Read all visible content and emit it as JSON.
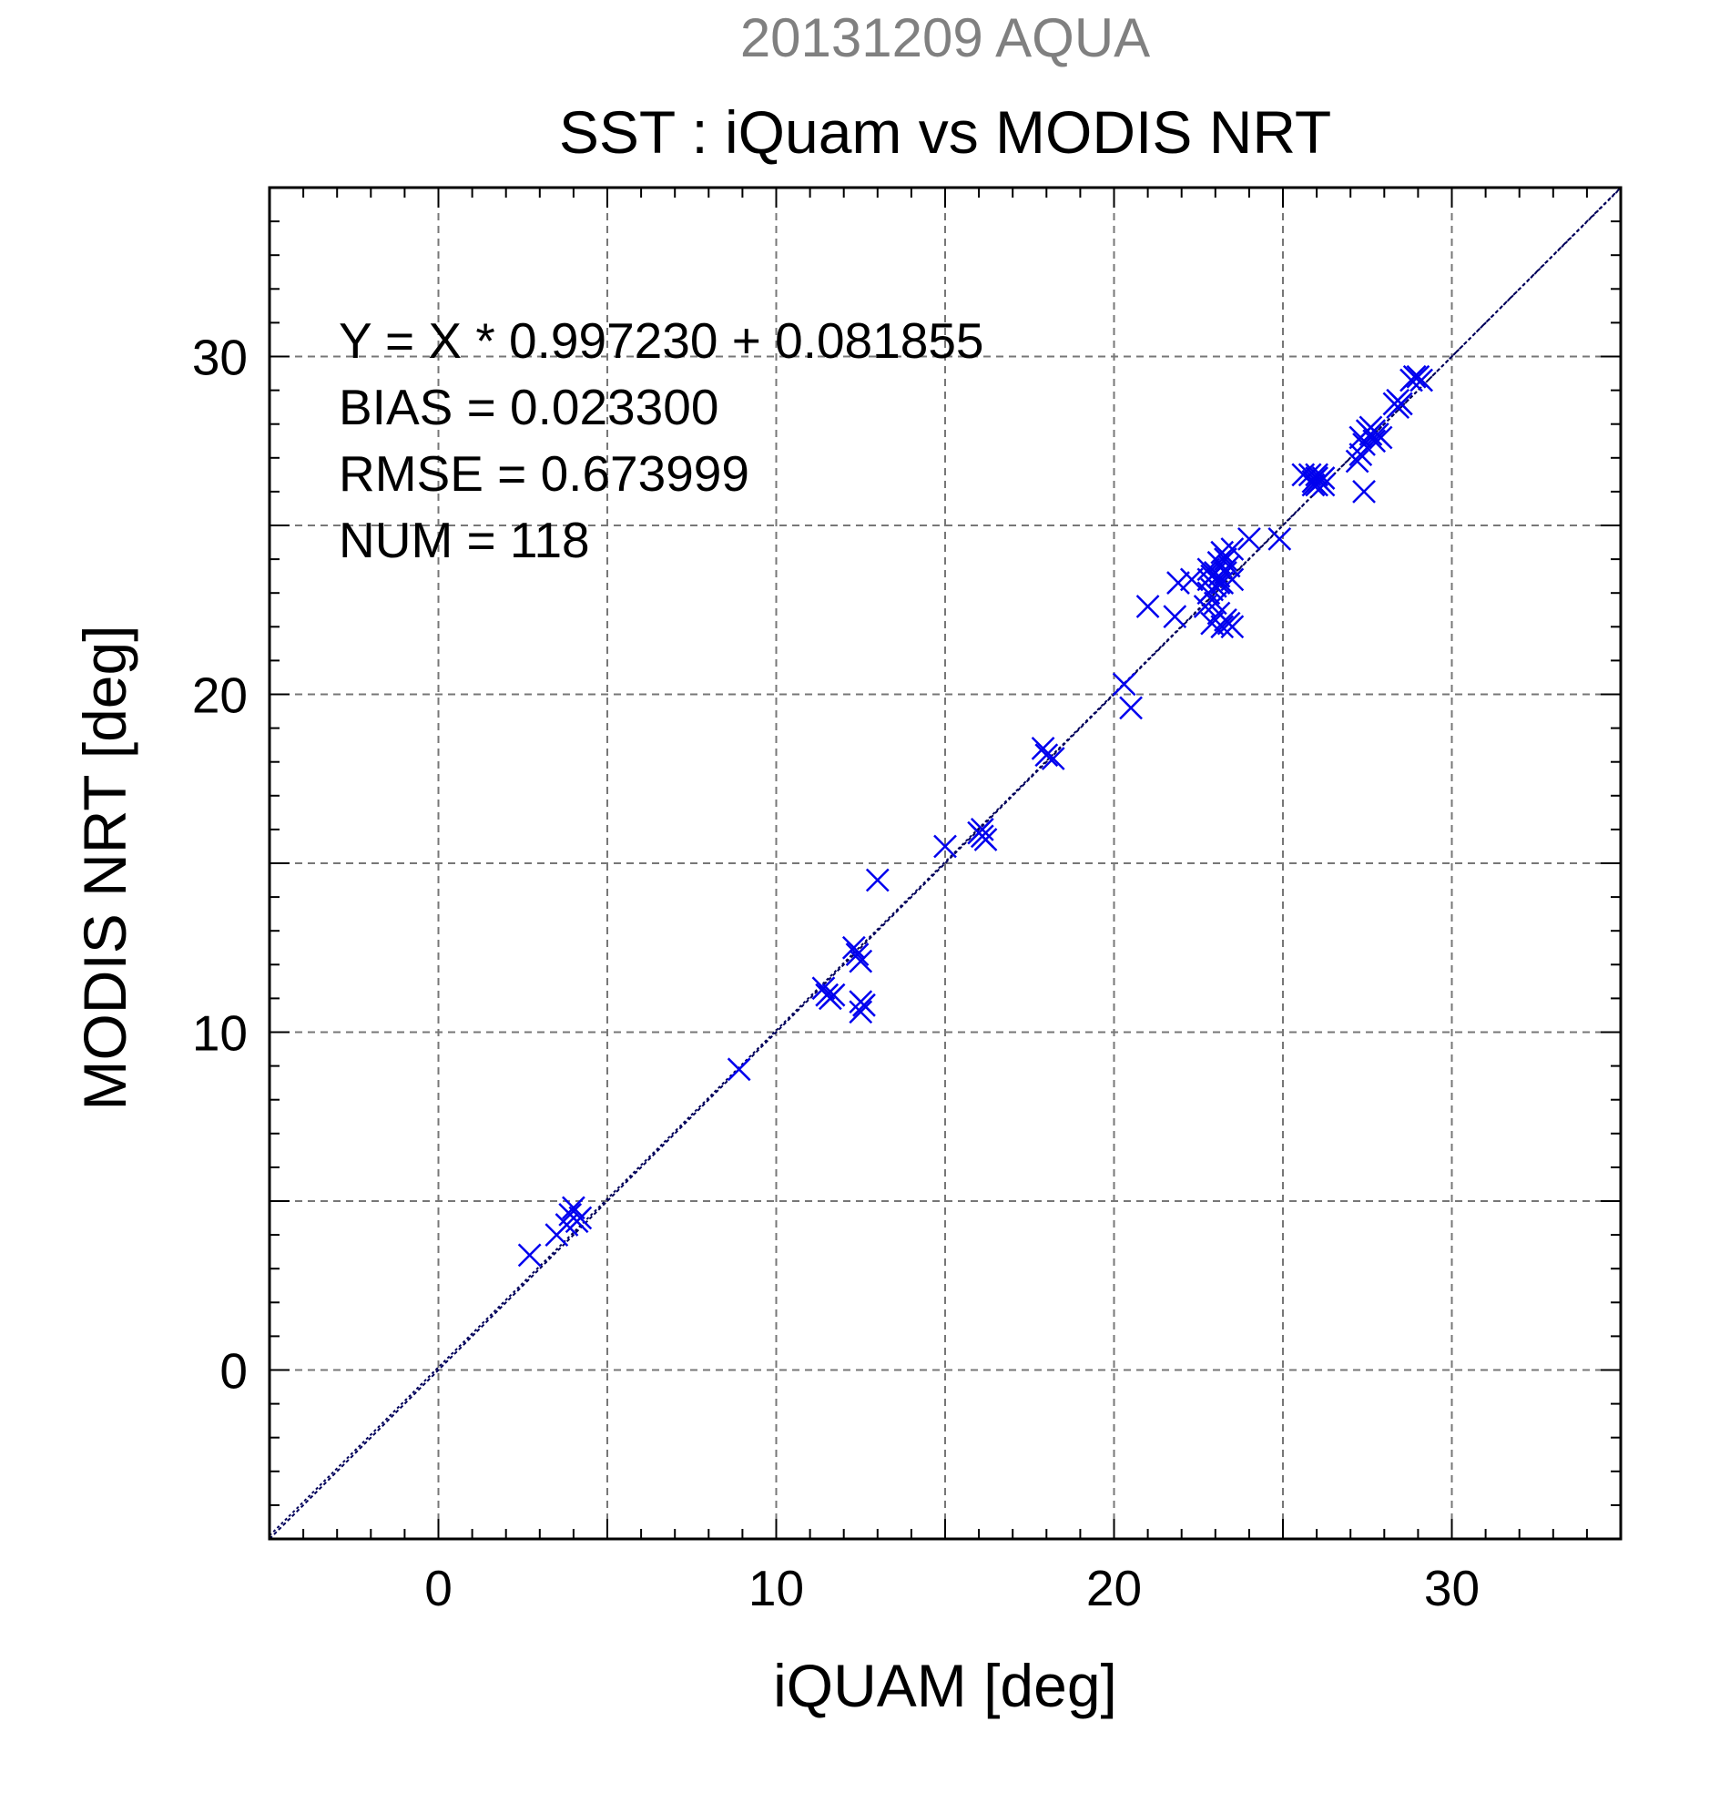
{
  "colors": {
    "background": "#ffffff",
    "frame": "#000000",
    "grid": "#777777",
    "points": "#0000ee",
    "fit_line": "#00005a",
    "title_top": "#808080",
    "text": "#000000"
  },
  "chart_data": {
    "type": "scatter",
    "title_top": "20131209 AQUA",
    "title": "SST : iQuam vs MODIS NRT",
    "xlabel": "iQUAM [deg]",
    "ylabel": "MODIS NRT [deg]",
    "xlim": [
      -5,
      35
    ],
    "ylim": [
      -5,
      35
    ],
    "xticks": [
      0,
      10,
      20,
      30
    ],
    "yticks": [
      0,
      10,
      20,
      30
    ],
    "grid": true,
    "grid_step": 5,
    "marker": "x",
    "stats": [
      "Y = X * 0.997230 + 0.081855",
      "BIAS = 0.023300",
      "RMSE = 0.673999",
      "NUM = 118"
    ],
    "fit": {
      "slope": 0.99723,
      "intercept": 0.081855
    },
    "points": [
      [
        2.7,
        3.4
      ],
      [
        3.5,
        4.0
      ],
      [
        3.8,
        4.3
      ],
      [
        4.0,
        4.8
      ],
      [
        4.1,
        4.4
      ],
      [
        4.2,
        4.5
      ],
      [
        3.9,
        4.6
      ],
      [
        8.9,
        8.9
      ],
      [
        11.4,
        11.3
      ],
      [
        11.5,
        11.1
      ],
      [
        11.6,
        11.0
      ],
      [
        11.7,
        11.1
      ],
      [
        12.3,
        12.5
      ],
      [
        12.4,
        12.3
      ],
      [
        12.5,
        12.1
      ],
      [
        12.5,
        10.9
      ],
      [
        12.5,
        10.6
      ],
      [
        12.6,
        10.8
      ],
      [
        13.0,
        14.5
      ],
      [
        15.0,
        15.5
      ],
      [
        16.0,
        15.9
      ],
      [
        16.1,
        15.8
      ],
      [
        16.2,
        15.7
      ],
      [
        16.1,
        16.0
      ],
      [
        17.9,
        18.4
      ],
      [
        18.0,
        18.2
      ],
      [
        18.2,
        18.1
      ],
      [
        20.3,
        20.3
      ],
      [
        20.5,
        19.6
      ],
      [
        21.0,
        22.6
      ],
      [
        21.8,
        22.3
      ],
      [
        21.9,
        23.3
      ],
      [
        22.3,
        23.4
      ],
      [
        22.7,
        22.6
      ],
      [
        22.8,
        23.0
      ],
      [
        22.8,
        23.4
      ],
      [
        22.8,
        23.7
      ],
      [
        22.9,
        22.1
      ],
      [
        22.9,
        23.1
      ],
      [
        22.9,
        23.5
      ],
      [
        23.0,
        22.7
      ],
      [
        23.0,
        23.2
      ],
      [
        23.0,
        23.6
      ],
      [
        23.1,
        22.4
      ],
      [
        23.1,
        23.3
      ],
      [
        23.1,
        23.5
      ],
      [
        23.1,
        23.9
      ],
      [
        23.2,
        22.0
      ],
      [
        23.2,
        23.3
      ],
      [
        23.2,
        24.2
      ],
      [
        23.3,
        22.2
      ],
      [
        23.3,
        23.6
      ],
      [
        23.4,
        22.1
      ],
      [
        23.4,
        23.8
      ],
      [
        23.5,
        23.4
      ],
      [
        23.5,
        24.3
      ],
      [
        23.5,
        22.0
      ],
      [
        23.3,
        24.0
      ],
      [
        24.0,
        24.6
      ],
      [
        24.9,
        24.6
      ],
      [
        25.6,
        26.5
      ],
      [
        25.8,
        26.5
      ],
      [
        25.9,
        26.3
      ],
      [
        26.0,
        26.2
      ],
      [
        26.0,
        26.5
      ],
      [
        26.1,
        26.3
      ],
      [
        26.2,
        26.2
      ],
      [
        26.2,
        26.4
      ],
      [
        26.0,
        26.4
      ],
      [
        25.9,
        26.2
      ],
      [
        27.2,
        26.9
      ],
      [
        27.3,
        27.1
      ],
      [
        27.3,
        27.6
      ],
      [
        27.4,
        26.0
      ],
      [
        27.4,
        27.4
      ],
      [
        27.5,
        27.8
      ],
      [
        27.6,
        27.7
      ],
      [
        27.7,
        27.8
      ],
      [
        27.7,
        27.5
      ],
      [
        27.8,
        27.7
      ],
      [
        27.9,
        27.6
      ],
      [
        27.6,
        27.9
      ],
      [
        28.3,
        28.6
      ],
      [
        28.4,
        28.5
      ],
      [
        28.4,
        28.7
      ],
      [
        28.5,
        28.6
      ],
      [
        28.9,
        29.4
      ],
      [
        29.0,
        29.4
      ],
      [
        29.1,
        29.3
      ],
      [
        28.8,
        29.3
      ]
    ]
  }
}
